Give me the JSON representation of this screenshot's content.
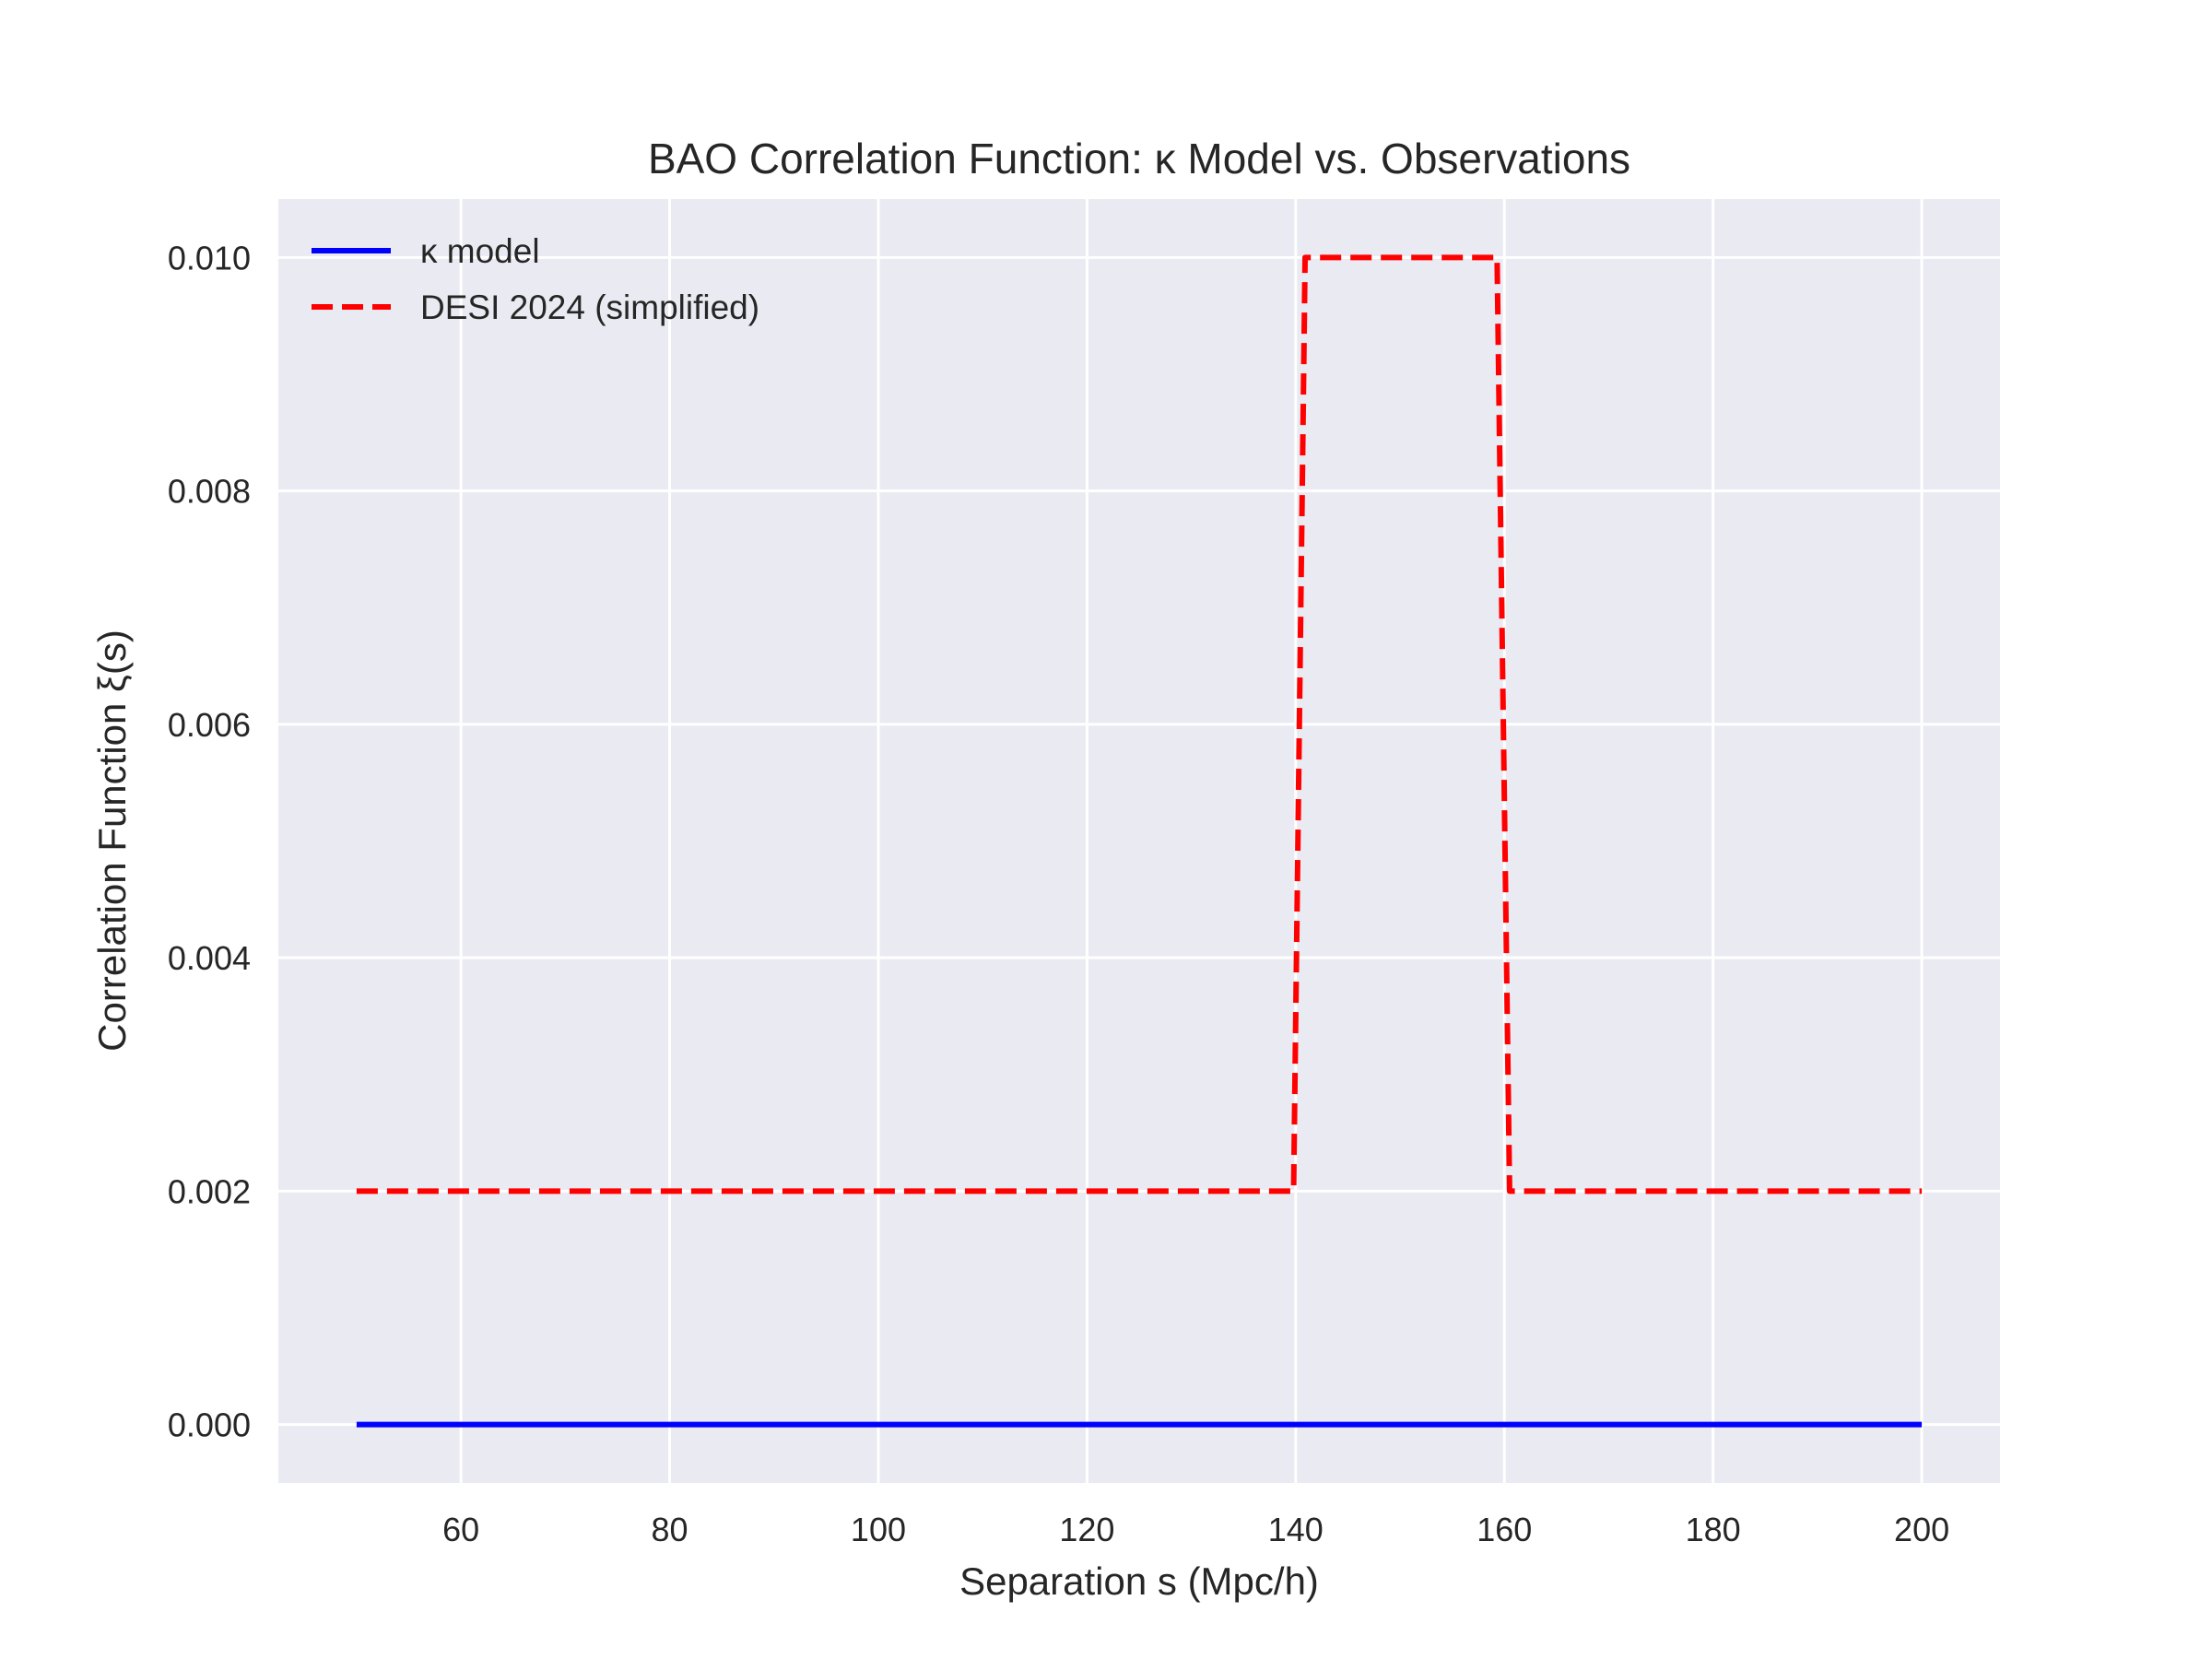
{
  "chart_data": {
    "type": "line",
    "title": "BAO Correlation Function: κ Model vs. Observations",
    "xlabel": "Separation s (Mpc/h)",
    "ylabel": "Correlation Function ξ(s)",
    "xlim": [
      42.5,
      207.5
    ],
    "ylim": [
      -0.0005,
      0.0105
    ],
    "xticks": [
      60,
      80,
      100,
      120,
      140,
      160,
      180,
      200
    ],
    "yticks": [
      0.0,
      0.002,
      0.004,
      0.006,
      0.008,
      0.01
    ],
    "xtick_labels": [
      "60",
      "80",
      "100",
      "120",
      "140",
      "160",
      "180",
      "200"
    ],
    "ytick_labels": [
      "0.000",
      "0.002",
      "0.004",
      "0.006",
      "0.008",
      "0.010"
    ],
    "grid": true,
    "legend_position": "top-left",
    "series": [
      {
        "name": "κ model",
        "color": "#0000ff",
        "style": "solid",
        "x": [
          50,
          200
        ],
        "y": [
          0.0,
          0.0
        ]
      },
      {
        "name": "DESI 2024 (simplified)",
        "color": "#ff0000",
        "style": "dashed",
        "x": [
          50,
          139.8,
          140.9,
          159.3,
          160.5,
          200
        ],
        "y": [
          0.002,
          0.002,
          0.01,
          0.01,
          0.002,
          0.002
        ]
      }
    ]
  }
}
